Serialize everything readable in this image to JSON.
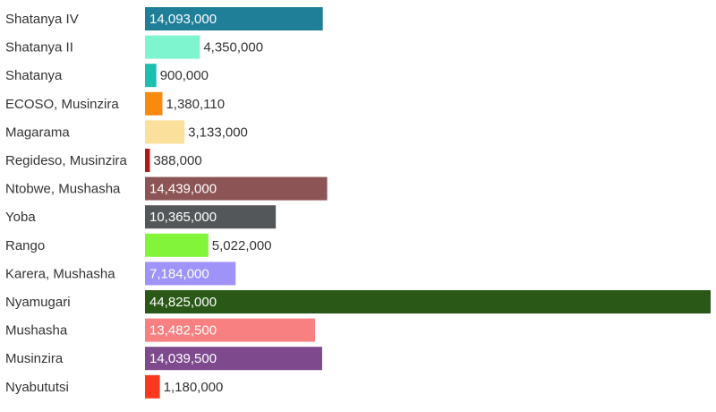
{
  "chart_data": {
    "type": "bar",
    "orientation": "horizontal",
    "title": "",
    "xlabel": "",
    "ylabel": "",
    "xlim": [
      0,
      44825000
    ],
    "grid": false,
    "legend": "none",
    "categories": [
      "Shatanya IV",
      "Shatanya II",
      "Shatanya",
      "ECOSO, Musinzira",
      "Magarama",
      "Regideso, Musinzira",
      "Ntobwe, Mushasha",
      "Yoba",
      "Rango",
      "Karera, Mushasha",
      "Nyamugari",
      "Mushasha",
      "Musinzira",
      "Nyabututsi"
    ],
    "values": [
      14093000,
      4350000,
      900000,
      1380110,
      3133000,
      388000,
      14439000,
      10365000,
      5022000,
      7184000,
      44825000,
      13482500,
      14039500,
      1180000
    ],
    "value_labels": [
      "14,093,000",
      "4,350,000",
      "900,000",
      "1,380,110",
      "3,133,000",
      "388,000",
      "14,439,000",
      "10,365,000",
      "5,022,000",
      "7,184,000",
      "44,825,000",
      "13,482,500",
      "14,039,500",
      "1,180,000"
    ],
    "colors": [
      "#1f7f99",
      "#7ff5cf",
      "#1bbfb0",
      "#f88a0f",
      "#fae09b",
      "#b11818",
      "#8c5454",
      "#545759",
      "#82f53a",
      "#9f93f9",
      "#2a5817",
      "#f98080",
      "#7e4a8d",
      "#f9391d"
    ],
    "label_inside": [
      true,
      false,
      false,
      false,
      false,
      false,
      true,
      true,
      false,
      true,
      true,
      true,
      true,
      false
    ]
  }
}
